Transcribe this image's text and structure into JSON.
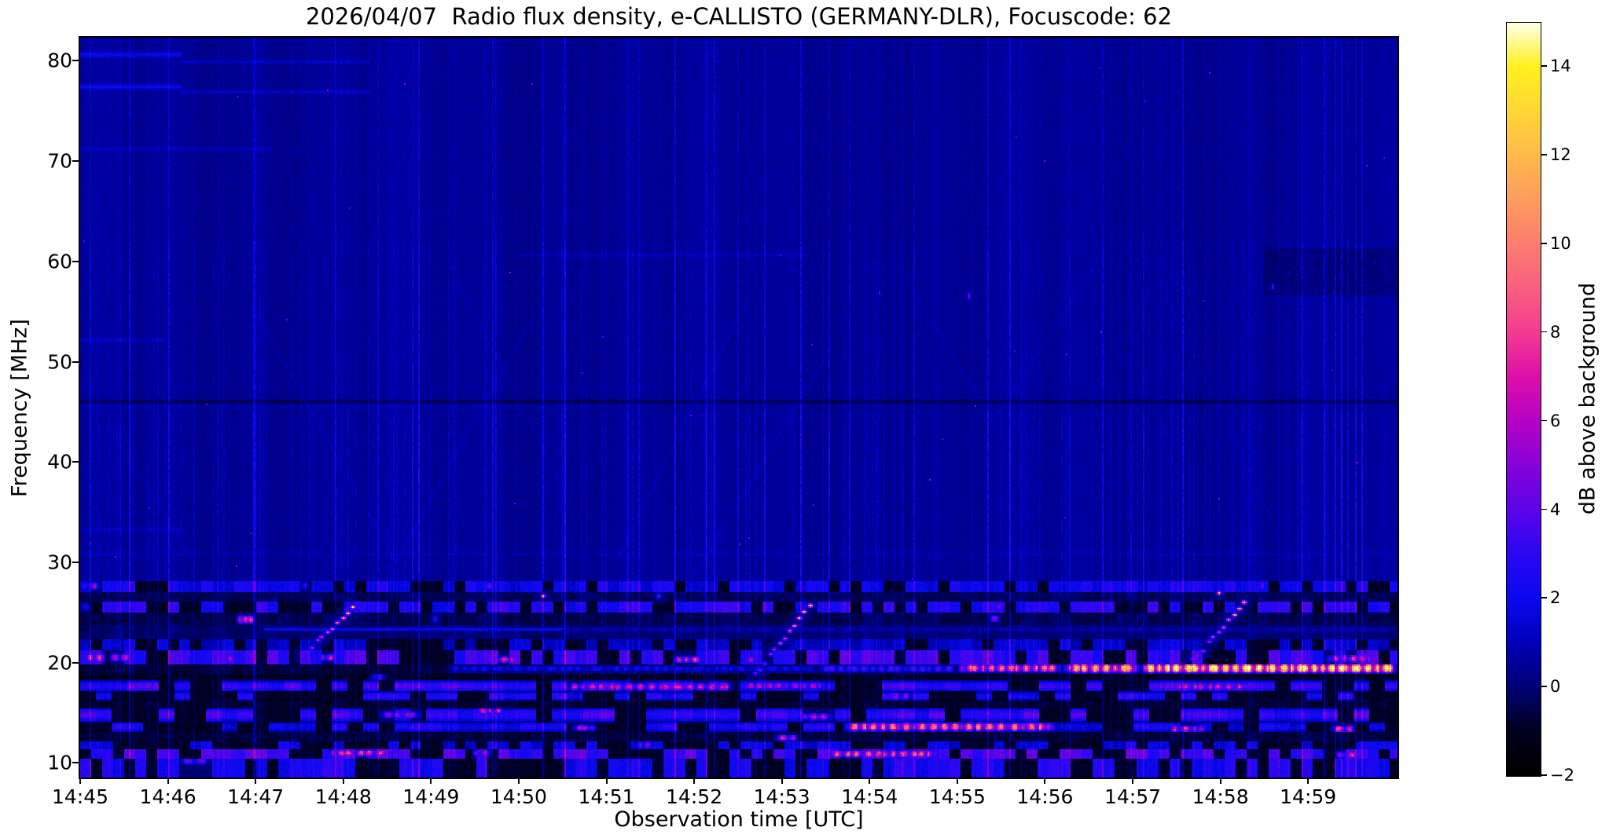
{
  "chart_data": {
    "type": "heatmap",
    "title": "2026/04/07  Radio flux density, e-CALLISTO (GERMANY-DLR), Focuscode: 62",
    "xlabel": "Observation time [UTC]",
    "ylabel": "Frequency [MHz]",
    "colorbar_label": "dB above background",
    "x_tick_labels": [
      "14:45",
      "14:46",
      "14:47",
      "14:48",
      "14:49",
      "14:50",
      "14:51",
      "14:52",
      "14:53",
      "14:54",
      "14:55",
      "14:56",
      "14:57",
      "14:58",
      "14:59"
    ],
    "x_range_minutes": [
      0,
      15.02
    ],
    "y_ticks": [
      10,
      20,
      30,
      40,
      50,
      60,
      70,
      80
    ],
    "ylim_mhz": [
      8.55,
      82.3
    ],
    "colorbar_ticks": [
      {
        "v": 14,
        "label": "14"
      },
      {
        "v": 12,
        "label": "12"
      },
      {
        "v": 10,
        "label": "10"
      },
      {
        "v": 8,
        "label": "8"
      },
      {
        "v": 6,
        "label": "6"
      },
      {
        "v": 4,
        "label": "4"
      },
      {
        "v": 2,
        "label": "2"
      },
      {
        "v": 0,
        "label": "0"
      },
      {
        "v": -2,
        "label": "−2"
      }
    ],
    "clim_db": [
      -2,
      15
    ],
    "legend_position": "right-colorbar",
    "grid": false,
    "colormap_stops": [
      [
        -2,
        "#000000"
      ],
      [
        -1,
        "#00001c"
      ],
      [
        0,
        "#000074"
      ],
      [
        1,
        "#0000b8"
      ],
      [
        2,
        "#0909f0"
      ],
      [
        3,
        "#2a07f2"
      ],
      [
        4,
        "#5b04e9"
      ],
      [
        5,
        "#8502d8"
      ],
      [
        6,
        "#b402c3"
      ],
      [
        7,
        "#dc0fa8"
      ],
      [
        8,
        "#f23b92"
      ],
      [
        9,
        "#f95f80"
      ],
      [
        10,
        "#fc7d70"
      ],
      [
        11,
        "#fd9c5e"
      ],
      [
        12,
        "#feb94b"
      ],
      [
        13,
        "#fed636"
      ],
      [
        14,
        "#fff01d"
      ],
      [
        15,
        "#ffffe8"
      ]
    ],
    "background_level_db": 0.4,
    "features": {
      "horizontal_lines": [
        {
          "f": 80.6,
          "df": 0.4,
          "t0": 0,
          "t1": 1.15,
          "a": 1.5
        },
        {
          "f": 79.9,
          "df": 0.3,
          "t0": 1.15,
          "t1": 3.3,
          "a": 0.8
        },
        {
          "f": 77.4,
          "df": 0.4,
          "t0": 0,
          "t1": 1.15,
          "a": 1.5
        },
        {
          "f": 76.9,
          "df": 0.3,
          "t0": 1.15,
          "t1": 3.3,
          "a": 0.8
        },
        {
          "f": 71.2,
          "df": 0.3,
          "t0": 0,
          "t1": 2.2,
          "a": 0.6
        },
        {
          "f": 60.6,
          "df": 0.3,
          "t0": 5.0,
          "t1": 8.3,
          "a": 0.5
        },
        {
          "f": 52.2,
          "df": 0.3,
          "t0": 0,
          "t1": 0.95,
          "a": 0.7
        },
        {
          "f": 46.0,
          "df": 0.3,
          "t0": 0,
          "t1": 15.02,
          "a": -1.1
        },
        {
          "f": 45.5,
          "df": 0.2,
          "t0": 0,
          "t1": 6.0,
          "a": 0.5
        },
        {
          "f": 33.3,
          "df": 0.3,
          "t0": 0,
          "t1": 1.2,
          "a": 0.6
        },
        {
          "f": 30.8,
          "df": 0.25,
          "t0": 0,
          "t1": 15.02,
          "a": 0.35
        }
      ],
      "dark_patches": [
        {
          "t0": 13.5,
          "t1": 15.02,
          "f0": 61.3,
          "f1": 56.6,
          "a": -0.45
        }
      ],
      "quiet_diagonals": [
        {
          "t0": 0.3,
          "f0": 44,
          "t1": 1.3,
          "f1": 30,
          "a": 0.4
        },
        {
          "t0": 2.0,
          "f0": 55,
          "t1": 3.6,
          "f1": 30,
          "a": 0.5
        },
        {
          "t0": 3.6,
          "f0": 30,
          "t1": 5.2,
          "f1": 55,
          "a": 0.45
        },
        {
          "t0": 4.3,
          "f0": 58,
          "t1": 5.6,
          "f1": 36,
          "a": 0.4
        },
        {
          "t0": 6.1,
          "f0": 30,
          "t1": 7.6,
          "f1": 56,
          "a": 0.5
        },
        {
          "t0": 7.0,
          "f0": 28.5,
          "t1": 8.6,
          "f1": 52,
          "a": 0.45
        },
        {
          "t0": 9.3,
          "f0": 60,
          "t1": 10.4,
          "f1": 44,
          "a": 0.4
        },
        {
          "t0": 10.4,
          "f0": 44,
          "t1": 11.6,
          "f1": 60,
          "a": 0.4
        },
        {
          "t0": 12.3,
          "f0": 58,
          "t1": 13.6,
          "f1": 34,
          "a": 0.35
        }
      ],
      "bands": [
        {
          "f0": 28.2,
          "f1": 27.1,
          "style": "speckle",
          "base": 1.1,
          "amp": 1.4,
          "gap": 0.25,
          "hot": [
            {
              "t0": 0.0,
              "t1": 0.25,
              "a": 5
            },
            {
              "t0": 2.5,
              "t1": 2.62,
              "a": 4.5
            },
            {
              "t0": 4.6,
              "t1": 4.75,
              "a": 5
            },
            {
              "t0": 9.0,
              "t1": 9.1,
              "a": 4
            },
            {
              "t0": 13.4,
              "t1": 13.55,
              "a": 4.5
            }
          ]
        },
        {
          "f0": 27.1,
          "f1": 26.1,
          "style": "dark",
          "base": -0.6,
          "amp": 0.9,
          "gap": 0.5,
          "hot": [
            {
              "t0": 6.55,
              "t1": 6.63,
              "a": 5
            }
          ]
        },
        {
          "f0": 26.1,
          "f1": 25.0,
          "style": "speckle",
          "base": 1.6,
          "amp": 1.6,
          "gap": 0.3,
          "hot": [
            {
              "t0": 0,
              "t1": 0.12,
              "a": 6
            },
            {
              "t0": 10.4,
              "t1": 10.55,
              "a": 5
            }
          ]
        },
        {
          "f0": 25.0,
          "f1": 23.7,
          "style": "dark",
          "base": -0.7,
          "amp": 1.0,
          "gap": 0.55,
          "hot": [
            {
              "t0": 1.78,
              "t1": 2.0,
              "a": 13,
              "fc": 24.3,
              "df": 0.5
            },
            {
              "t0": 4.0,
              "t1": 4.1,
              "a": 4.5
            },
            {
              "t0": 10.35,
              "t1": 10.5,
              "a": 6,
              "fc": 24.4,
              "df": 0.4
            }
          ]
        },
        {
          "f0": 23.7,
          "f1": 22.4,
          "style": "dark",
          "base": -0.4,
          "amp": 0.9,
          "gap": 0.45,
          "line": {
            "f": 23.3,
            "t0": 2.1,
            "t1": 5.5,
            "a": 2.0
          },
          "hot": [
            {
              "t0": 5.5,
              "t1": 15.02,
              "a": 1.1,
              "fc": 23.3,
              "df": 0.25
            }
          ]
        },
        {
          "f0": 22.4,
          "f1": 21.2,
          "style": "speckle",
          "base": 0.6,
          "amp": 1.0,
          "gap": 0.4,
          "hot": []
        },
        {
          "f0": 21.2,
          "f1": 19.85,
          "style": "speckle",
          "base": 2.0,
          "amp": 1.8,
          "gap": 0.3,
          "hot": [
            {
              "t0": 0,
              "t1": 0.3,
              "a": 8,
              "fc": 20.5,
              "df": 0.5
            },
            {
              "t0": 0.32,
              "t1": 0.62,
              "a": 6.5,
              "fc": 20.5,
              "df": 0.45
            },
            {
              "t0": 1.6,
              "t1": 1.8,
              "a": 5.5,
              "fc": 20.4,
              "df": 0.4
            },
            {
              "t0": 2.68,
              "t1": 2.95,
              "a": 6.5,
              "fc": 20.5,
              "df": 0.4
            },
            {
              "t0": 4.7,
              "t1": 5.0,
              "a": 7,
              "fc": 20.3,
              "df": 0.4
            },
            {
              "t0": 6.75,
              "t1": 7.1,
              "a": 7.5,
              "fc": 20.3,
              "df": 0.4
            },
            {
              "t0": 7.55,
              "t1": 7.75,
              "a": 6,
              "fc": 20.3,
              "df": 0.4
            },
            {
              "t0": 14.2,
              "t1": 14.75,
              "a": 7,
              "fc": 20.4,
              "df": 0.45
            }
          ]
        },
        {
          "f0": 19.85,
          "f1": 18.95,
          "style": "dark",
          "base": -0.9,
          "amp": 0.7,
          "gap": 0.6,
          "hot": [
            {
              "t0": 4.2,
              "t1": 8.4,
              "a": 2.0,
              "fc": 19.4,
              "df": 0.35
            },
            {
              "t0": 8.4,
              "t1": 10.0,
              "a": 3.5,
              "fc": 19.4,
              "df": 0.4
            },
            {
              "t0": 10.0,
              "t1": 11.2,
              "a": 9.0,
              "fc": 19.45,
              "df": 0.5
            },
            {
              "t0": 11.2,
              "t1": 12.1,
              "a": 11.5,
              "fc": 19.45,
              "df": 0.55
            },
            {
              "t0": 12.1,
              "t1": 15.02,
              "a": 14.0,
              "fc": 19.45,
              "df": 0.55
            }
          ]
        },
        {
          "f0": 18.95,
          "f1": 18.2,
          "style": "dark",
          "base": -1.1,
          "amp": 0.5,
          "gap": 0.7,
          "hot": [
            {
              "t0": 3.3,
              "t1": 3.5,
              "a": 3
            }
          ]
        },
        {
          "f0": 18.2,
          "f1": 17.1,
          "style": "blob",
          "base": 1.8,
          "amp": 1.6,
          "gap": 0.42,
          "hot": [
            {
              "t0": 0,
              "t1": 0.15,
              "a": 7,
              "fc": 17.7,
              "df": 0.4
            },
            {
              "t0": 5.55,
              "t1": 7.45,
              "a": 6.5,
              "fc": 17.6,
              "df": 0.45
            },
            {
              "t0": 7.5,
              "t1": 8.5,
              "a": 6,
              "fc": 17.7,
              "df": 0.4
            },
            {
              "t0": 12.4,
              "t1": 13.3,
              "a": 6.5,
              "fc": 17.6,
              "df": 0.45
            }
          ]
        },
        {
          "f0": 17.1,
          "f1": 16.2,
          "style": "blob",
          "base": 1.2,
          "amp": 1.4,
          "gap": 0.5,
          "hot": [
            {
              "t0": 9.2,
              "t1": 9.5,
              "a": 5
            }
          ]
        },
        {
          "f0": 16.2,
          "f1": 15.5,
          "style": "dark",
          "base": -1.0,
          "amp": 0.6,
          "gap": 0.65,
          "hot": []
        },
        {
          "f0": 15.5,
          "f1": 14.1,
          "style": "blob",
          "base": 1.7,
          "amp": 1.7,
          "gap": 0.45,
          "hot": [
            {
              "t0": 3.4,
              "t1": 3.9,
              "a": 5,
              "fc": 14.8,
              "df": 0.4
            },
            {
              "t0": 4.46,
              "t1": 4.85,
              "a": 7,
              "fc": 15.2,
              "df": 0.35
            },
            {
              "t0": 8.2,
              "t1": 8.6,
              "a": 6,
              "fc": 14.6,
              "df": 0.4
            }
          ]
        },
        {
          "f0": 14.1,
          "f1": 13.1,
          "style": "blob",
          "base": 1.0,
          "amp": 1.5,
          "gap": 0.5,
          "hot": [
            {
              "t0": 5.6,
              "t1": 5.9,
              "a": 6,
              "fc": 13.5,
              "df": 0.35
            },
            {
              "t0": 8.7,
              "t1": 11.1,
              "a": 9.5,
              "fc": 13.6,
              "df": 0.5
            },
            {
              "t0": 12.4,
              "t1": 12.85,
              "a": 7,
              "fc": 13.4,
              "df": 0.4
            },
            {
              "t0": 14.25,
              "t1": 14.55,
              "a": 7.5,
              "fc": 13.4,
              "df": 0.4
            }
          ]
        },
        {
          "f0": 13.1,
          "f1": 12.2,
          "style": "dark",
          "base": -0.9,
          "amp": 0.7,
          "gap": 0.6,
          "hot": [
            {
              "t0": 7.9,
              "t1": 8.2,
              "a": 6.5,
              "fc": 12.5,
              "df": 0.35
            }
          ]
        },
        {
          "f0": 12.2,
          "f1": 11.4,
          "style": "speckle",
          "base": 0.9,
          "amp": 1.2,
          "gap": 0.45,
          "hot": [
            {
              "t0": 6.3,
              "t1": 6.55,
              "a": 5
            }
          ]
        },
        {
          "f0": 11.4,
          "f1": 10.4,
          "style": "speckle",
          "base": 2.2,
          "amp": 1.9,
          "gap": 0.3,
          "hot": [
            {
              "t0": 2.8,
              "t1": 3.55,
              "a": 7.5,
              "fc": 11.0,
              "df": 0.4
            },
            {
              "t0": 4.46,
              "t1": 4.7,
              "a": 6,
              "fc": 11.0,
              "df": 0.35
            },
            {
              "t0": 8.5,
              "t1": 9.8,
              "a": 8,
              "fc": 10.9,
              "df": 0.45
            },
            {
              "t0": 14.3,
              "t1": 14.65,
              "a": 7,
              "fc": 10.8,
              "df": 0.4
            }
          ]
        },
        {
          "f0": 10.4,
          "f1": 8.55,
          "style": "speckle",
          "base": 1.4,
          "amp": 1.6,
          "gap": 0.4,
          "hot": [
            {
              "t0": 1.1,
              "t1": 1.5,
              "a": 4,
              "fc": 10.2,
              "df": 0.4
            }
          ]
        }
      ],
      "bursts": [
        {
          "t0": 2.53,
          "t1": 3.11,
          "f0": 20.6,
          "f1": 25.4,
          "a0": 5,
          "a1": 13,
          "dashes": 11
        },
        {
          "t0": 7.7,
          "t1": 8.31,
          "f0": 18.8,
          "f1": 25.6,
          "a0": 4.5,
          "a1": 13.5,
          "dashes": 12
        },
        {
          "t0": 12.69,
          "t1": 13.27,
          "f0": 20.2,
          "f1": 25.9,
          "a0": 5,
          "a1": 13,
          "dashes": 11
        }
      ],
      "spots": [
        {
          "t": 5.27,
          "f": 26.7,
          "a": 12,
          "w": 1.2,
          "h": 1.2
        },
        {
          "t": 12.99,
          "f": 26.9,
          "a": 12,
          "w": 1.2,
          "h": 1.4
        },
        {
          "t": 6.6,
          "f": 26.6,
          "a": 5,
          "w": 1.0,
          "h": 1.0
        },
        {
          "t": 10.13,
          "f": 56.6,
          "a": 5.5,
          "w": 0.8,
          "h": 2.4
        },
        {
          "t": 9.12,
          "f": 56.8,
          "a": 4.5,
          "w": 0.8,
          "h": 1.4
        },
        {
          "t": 13.6,
          "f": 57.5,
          "a": 5,
          "w": 0.8,
          "h": 1.6
        }
      ],
      "vertical_streaks": {
        "p_bright": 0.045,
        "p_med": 0.18,
        "amp_bright": [
          1.4,
          3.6
        ],
        "amp_med": [
          0.45,
          1.2
        ],
        "amp_low": [
          0,
          0.12
        ]
      }
    }
  }
}
